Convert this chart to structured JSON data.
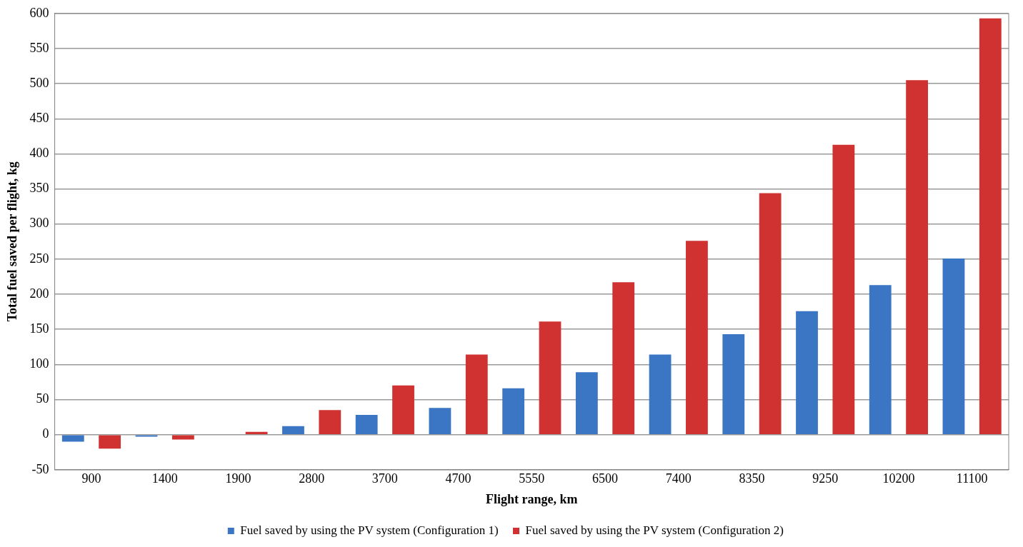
{
  "chart_data": {
    "type": "bar",
    "xlabel": "Flight range, km",
    "ylabel": "Total fuel saved per flight, kg",
    "categories": [
      "900",
      "1400",
      "1900",
      "2800",
      "3700",
      "4700",
      "5550",
      "6500",
      "7400",
      "8350",
      "9250",
      "10200",
      "11100"
    ],
    "series": [
      {
        "name": "Fuel saved by using the PV system (Configuration 1)",
        "color": "#3a76c4",
        "values": [
          -10,
          -3,
          0,
          12,
          28,
          38,
          66,
          89,
          114,
          143,
          176,
          213,
          251
        ]
      },
      {
        "name": "Fuel saved by using the PV system (Configuration 2)",
        "color": "#d03232",
        "values": [
          -20,
          -7,
          4,
          35,
          70,
          114,
          161,
          217,
          276,
          344,
          413,
          505,
          593
        ]
      }
    ],
    "ylim": [
      -50,
      600
    ],
    "yticks": [
      -50,
      0,
      50,
      100,
      150,
      200,
      250,
      300,
      350,
      400,
      450,
      500,
      550,
      600
    ],
    "grid": "y",
    "legend": "bottom"
  }
}
